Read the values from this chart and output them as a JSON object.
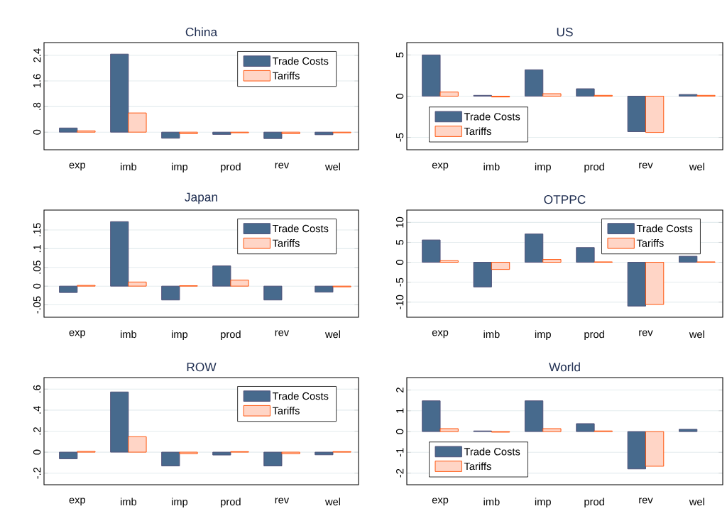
{
  "chart_data": [
    {
      "type": "bar",
      "title": "China",
      "categories": [
        "exp",
        "imb",
        "imp",
        "prod",
        "rev",
        "wel"
      ],
      "series": [
        {
          "name": "Trade Costs",
          "color": "#476a8d",
          "values": [
            0.13,
            2.44,
            -0.19,
            -0.07,
            -0.2,
            -0.08
          ]
        },
        {
          "name": "Tariffs",
          "color": "#ffd5c6",
          "values": [
            0.04,
            0.6,
            -0.05,
            -0.02,
            -0.05,
            -0.02
          ]
        }
      ],
      "ylim": [
        -0.55,
        2.8
      ],
      "yticks": [
        0,
        {
          "value": 0.8,
          "label": ".8"
        },
        1.6,
        2.4
      ],
      "grid": "y",
      "legend": "top right"
    },
    {
      "type": "bar",
      "title": "US",
      "categories": [
        "exp",
        "imb",
        "imp",
        "prod",
        "rev",
        "wel"
      ],
      "series": [
        {
          "name": "Trade Costs",
          "color": "#476a8d",
          "values": [
            5.0,
            0.1,
            3.2,
            0.9,
            -4.3,
            0.2
          ]
        },
        {
          "name": "Tariffs",
          "color": "#ffd5c6",
          "values": [
            0.5,
            -0.1,
            0.3,
            0.1,
            -4.4,
            0.1
          ]
        }
      ],
      "ylim": [
        -6.5,
        6.5
      ],
      "yticks": [
        -5,
        0,
        5
      ],
      "grid": "y",
      "legend": "bottom left"
    },
    {
      "type": "bar",
      "title": "Japan",
      "categories": [
        "exp",
        "imb",
        "imp",
        "prod",
        "rev",
        "wel"
      ],
      "series": [
        {
          "name": "Trade Costs",
          "color": "#476a8d",
          "values": [
            -0.017,
            0.172,
            -0.037,
            0.054,
            -0.037,
            -0.016
          ]
        },
        {
          "name": "Tariffs",
          "color": "#ffd5c6",
          "values": [
            0.002,
            0.011,
            0.001,
            0.016,
            null,
            -0.002
          ]
        }
      ],
      "ylim": [
        -0.083,
        0.203
      ],
      "yticks": [
        {
          "value": -0.05,
          "label": "-.05"
        },
        0,
        {
          "value": 0.05,
          "label": ".05"
        },
        {
          "value": 0.1,
          "label": ".1"
        },
        {
          "value": 0.15,
          "label": ".15"
        }
      ],
      "grid": "y",
      "legend": "top right"
    },
    {
      "type": "bar",
      "title": "OTPPC",
      "categories": [
        "exp",
        "imb",
        "imp",
        "prod",
        "rev",
        "wel"
      ],
      "series": [
        {
          "name": "Trade Costs",
          "color": "#476a8d",
          "values": [
            5.6,
            -6.2,
            7.1,
            3.7,
            -11.0,
            1.5
          ]
        },
        {
          "name": "Tariffs",
          "color": "#ffd5c6",
          "values": [
            0.4,
            -1.8,
            0.7,
            0.1,
            -10.6,
            0.1
          ]
        }
      ],
      "ylim": [
        -13.8,
        13.1
      ],
      "yticks": [
        -10,
        -5,
        0,
        5,
        10
      ],
      "grid": "y",
      "legend": "top right"
    },
    {
      "type": "bar",
      "title": "ROW",
      "categories": [
        "exp",
        "imb",
        "imp",
        "prod",
        "rev",
        "wel"
      ],
      "series": [
        {
          "name": "Trade Costs",
          "color": "#476a8d",
          "values": [
            -0.063,
            0.573,
            -0.131,
            -0.027,
            -0.131,
            -0.025
          ]
        },
        {
          "name": "Tariffs",
          "color": "#ffd5c6",
          "values": [
            0.007,
            0.147,
            -0.016,
            0.005,
            -0.016,
            0.005
          ]
        }
      ],
      "ylim": [
        -0.31,
        0.71
      ],
      "yticks": [
        {
          "value": -0.2,
          "label": "-.2"
        },
        0,
        {
          "value": 0.2,
          "label": ".2"
        },
        {
          "value": 0.4,
          "label": ".4"
        },
        {
          "value": 0.6,
          "label": ".6"
        }
      ],
      "grid": "y",
      "legend": "top right"
    },
    {
      "type": "bar",
      "title": "World",
      "categories": [
        "exp",
        "imb",
        "imp",
        "prod",
        "rev",
        "wel"
      ],
      "series": [
        {
          "name": "Trade Costs",
          "color": "#476a8d",
          "values": [
            1.48,
            0.03,
            1.48,
            0.38,
            -1.8,
            0.11
          ]
        },
        {
          "name": "Tariffs",
          "color": "#ffd5c6",
          "values": [
            0.14,
            -0.03,
            0.14,
            0.03,
            -1.67,
            null
          ]
        }
      ],
      "ylim": [
        -2.56,
        2.6
      ],
      "yticks": [
        -2,
        -1,
        0,
        1,
        2
      ],
      "grid": "y",
      "legend": "bottom left"
    }
  ]
}
